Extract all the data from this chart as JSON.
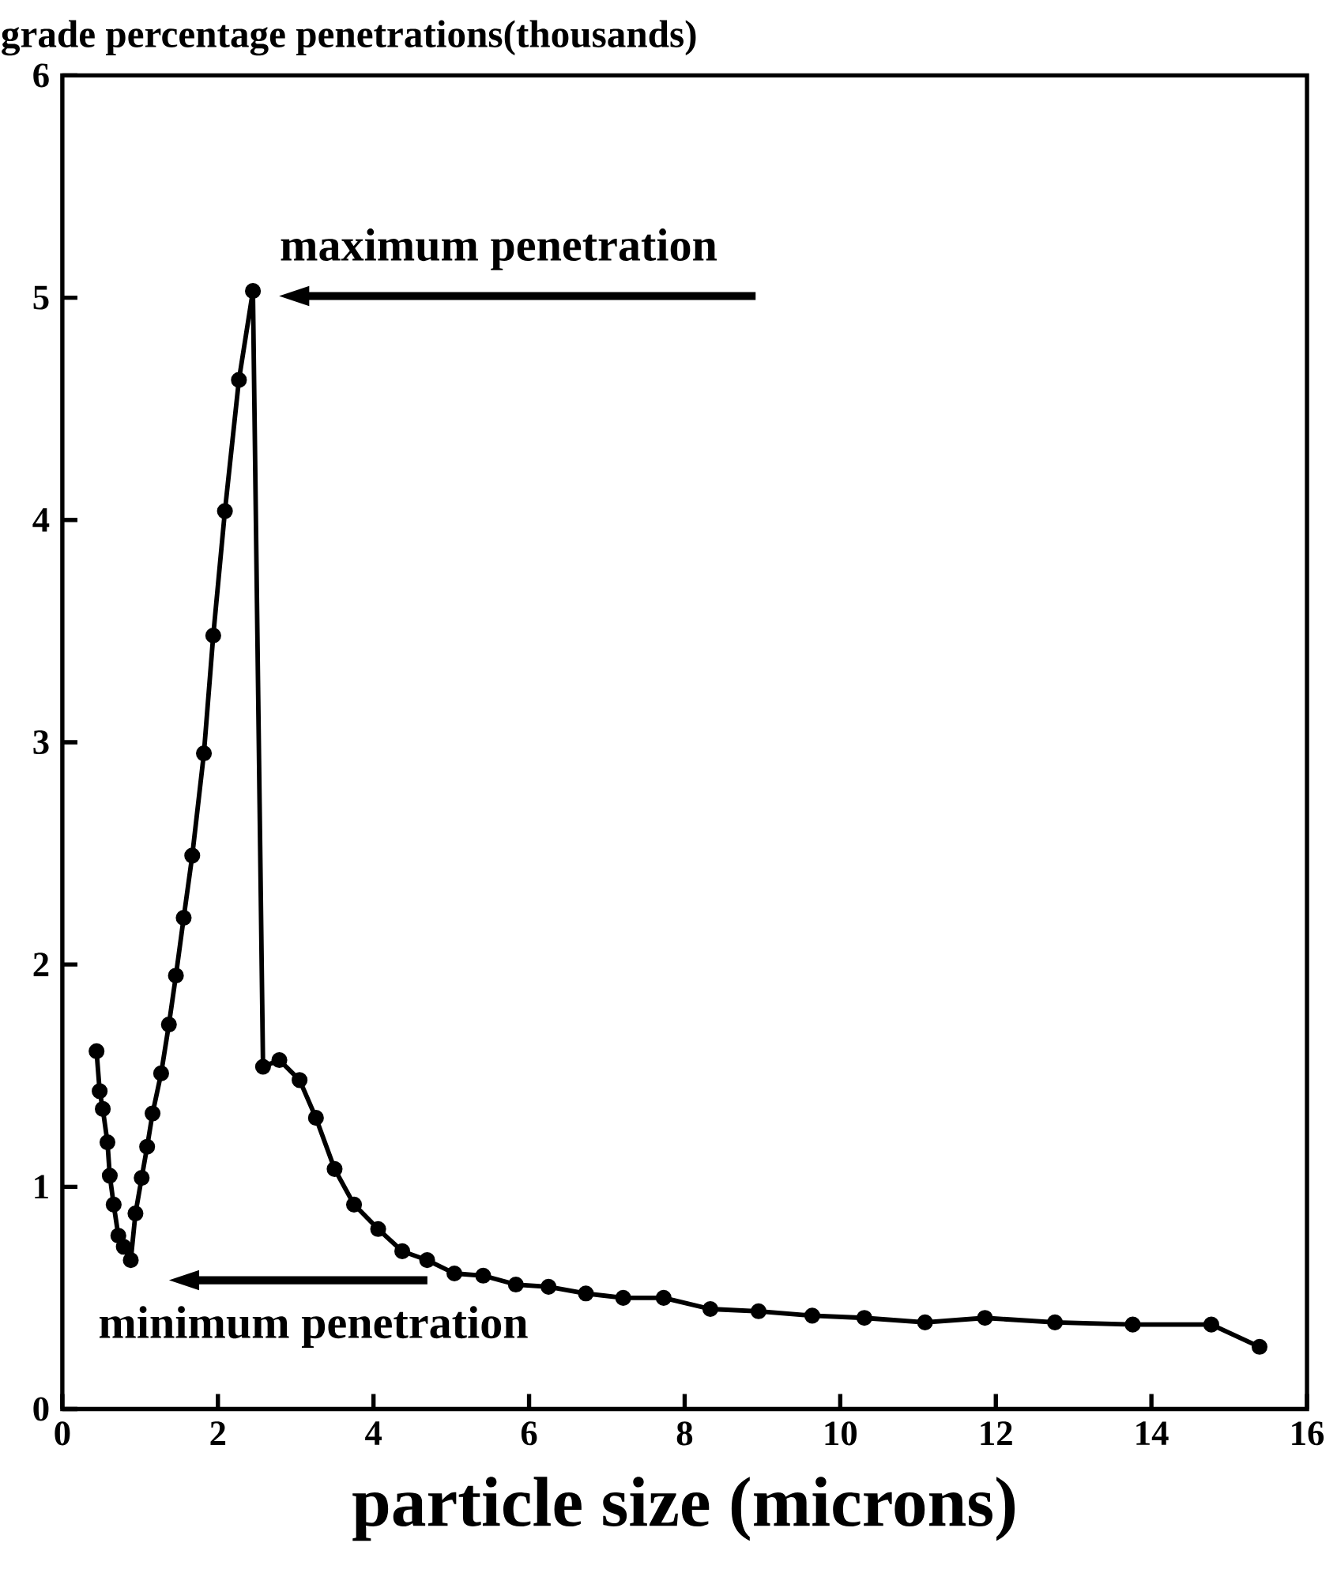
{
  "chart_data": {
    "type": "line",
    "ylabel": "grade percentage penetrations(thousands)",
    "xlabel": "particle size (microns)",
    "xlim": [
      0,
      16
    ],
    "ylim": [
      0,
      6
    ],
    "xticks": [
      0,
      2,
      4,
      6,
      8,
      10,
      12,
      14,
      16
    ],
    "yticks": [
      0,
      1,
      2,
      3,
      4,
      5,
      6
    ],
    "grid": false,
    "marker": "circle",
    "line_style": "solid",
    "annotations": [
      {
        "text": "maximum penetration",
        "x": 2.45,
        "y": 5.03
      },
      {
        "text": "minimum penetration",
        "x": 0.88,
        "y": 0.67
      }
    ],
    "series": [
      {
        "color": "#000000",
        "x": [
          0.44,
          0.48,
          0.52,
          0.58,
          0.61,
          0.66,
          0.72,
          0.79,
          0.88,
          0.94,
          1.02,
          1.09,
          1.16,
          1.27,
          1.37,
          1.46,
          1.56,
          1.67,
          1.82,
          1.94,
          2.09,
          2.27,
          2.45,
          2.58,
          2.79,
          3.05,
          3.26,
          3.5,
          3.75,
          4.06,
          4.37,
          4.69,
          5.04,
          5.41,
          5.83,
          6.25,
          6.73,
          7.21,
          7.73,
          8.33,
          8.95,
          9.64,
          10.31,
          11.09,
          11.86,
          12.76,
          13.76,
          14.77,
          15.39
        ],
        "values": [
          1.61,
          1.43,
          1.35,
          1.2,
          1.05,
          0.92,
          0.78,
          0.73,
          0.67,
          0.88,
          1.04,
          1.18,
          1.33,
          1.51,
          1.73,
          1.95,
          2.21,
          2.49,
          2.95,
          3.48,
          4.04,
          4.63,
          5.03,
          1.54,
          1.57,
          1.48,
          1.31,
          1.08,
          0.92,
          0.81,
          0.71,
          0.67,
          0.61,
          0.6,
          0.56,
          0.55,
          0.52,
          0.5,
          0.5,
          0.45,
          0.44,
          0.42,
          0.41,
          0.39,
          0.41,
          0.39,
          0.38,
          0.38,
          0.28
        ]
      }
    ]
  }
}
